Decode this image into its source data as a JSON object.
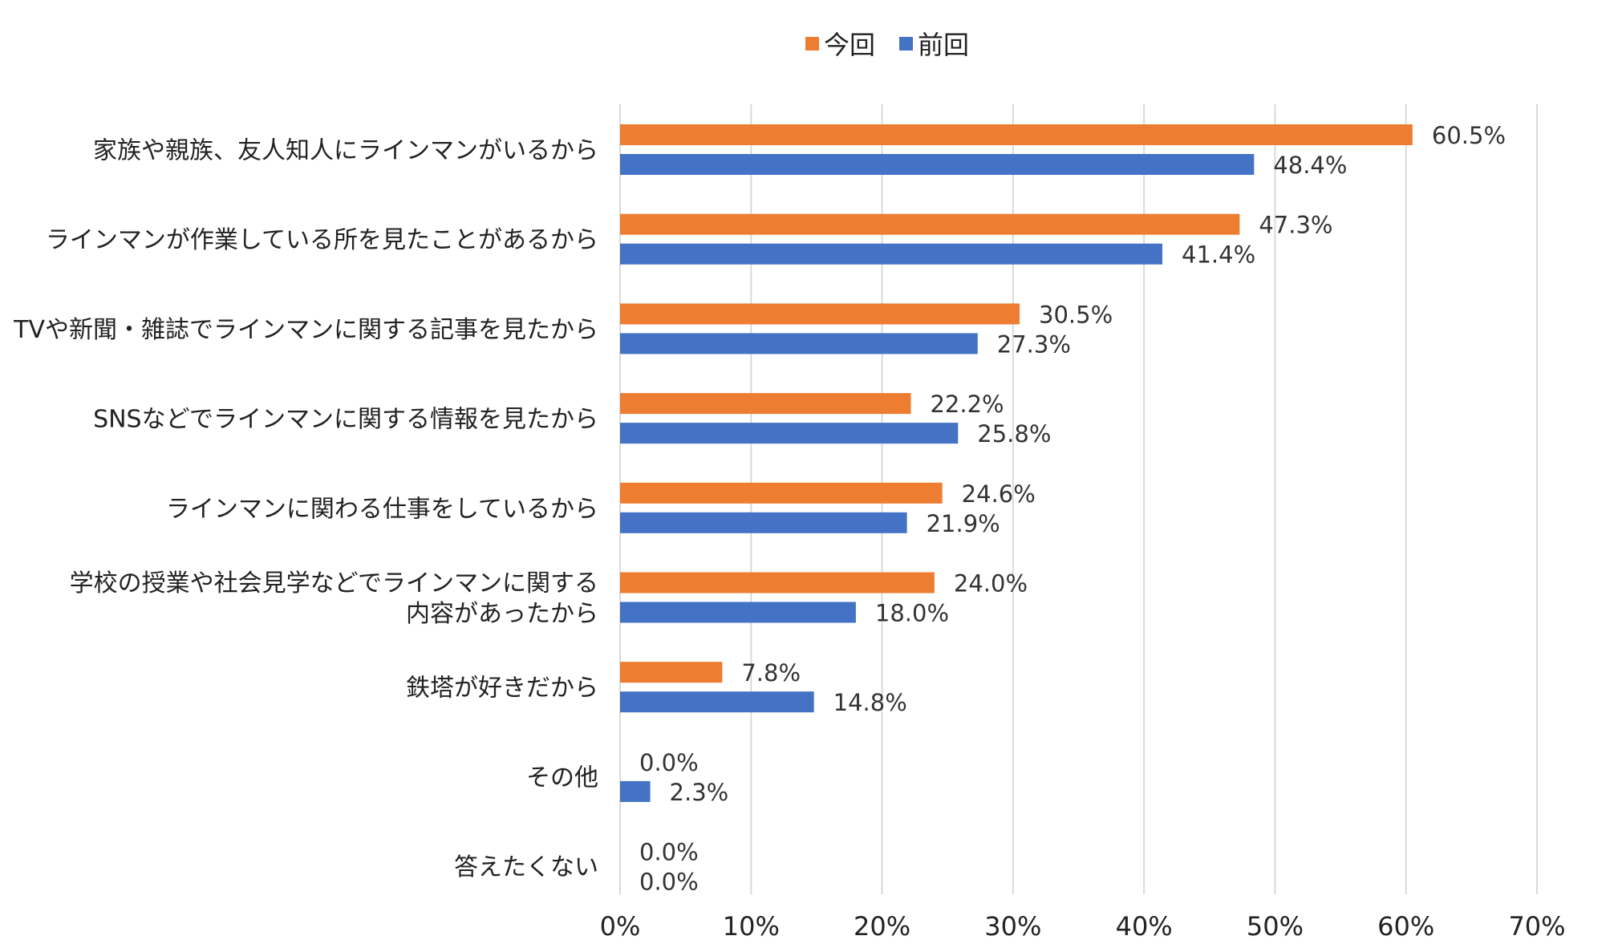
{
  "chart_data": {
    "type": "bar",
    "orientation": "horizontal",
    "categories": [
      [
        "家族や親族、友人知人にラインマンがいるから"
      ],
      [
        "ラインマンが作業している所を見たことがあるから"
      ],
      [
        "TVや新聞・雑誌でラインマンに関する記事を見たから"
      ],
      [
        "SNSなどでラインマンに関する情報を見たから"
      ],
      [
        "ラインマンに関わる仕事をしているから"
      ],
      [
        "学校の授業や社会見学などでラインマンに関する",
        "内容があったから"
      ],
      [
        "鉄塔が好きだから"
      ],
      [
        "その他"
      ],
      [
        "答えたくない"
      ]
    ],
    "series": [
      {
        "name": "今回",
        "color": "#ED7D31",
        "values": [
          60.5,
          47.3,
          30.5,
          22.2,
          24.6,
          24.0,
          7.8,
          0.0,
          0.0
        ],
        "labels": [
          "60.5%",
          "47.3%",
          "30.5%",
          "22.2%",
          "24.6%",
          "24.0%",
          "7.8%",
          "0.0%",
          "0.0%"
        ]
      },
      {
        "name": "前回",
        "color": "#4472C4",
        "values": [
          48.4,
          41.4,
          27.3,
          25.8,
          21.9,
          18.0,
          14.8,
          2.3,
          0.0
        ],
        "labels": [
          "48.4%",
          "41.4%",
          "27.3%",
          "25.8%",
          "21.9%",
          "18.0%",
          "14.8%",
          "2.3%",
          "0.0%"
        ]
      }
    ],
    "xlim": [
      0,
      70
    ],
    "xticks": [
      0,
      10,
      20,
      30,
      40,
      50,
      60,
      70
    ],
    "xtick_labels": [
      "0%",
      "10%",
      "20%",
      "30%",
      "40%",
      "50%",
      "60%",
      "70%"
    ],
    "grid": "vertical",
    "gridline_color": "#D9D9D9",
    "legend_position": "top-center",
    "title": "",
    "xlabel": "",
    "ylabel": ""
  }
}
